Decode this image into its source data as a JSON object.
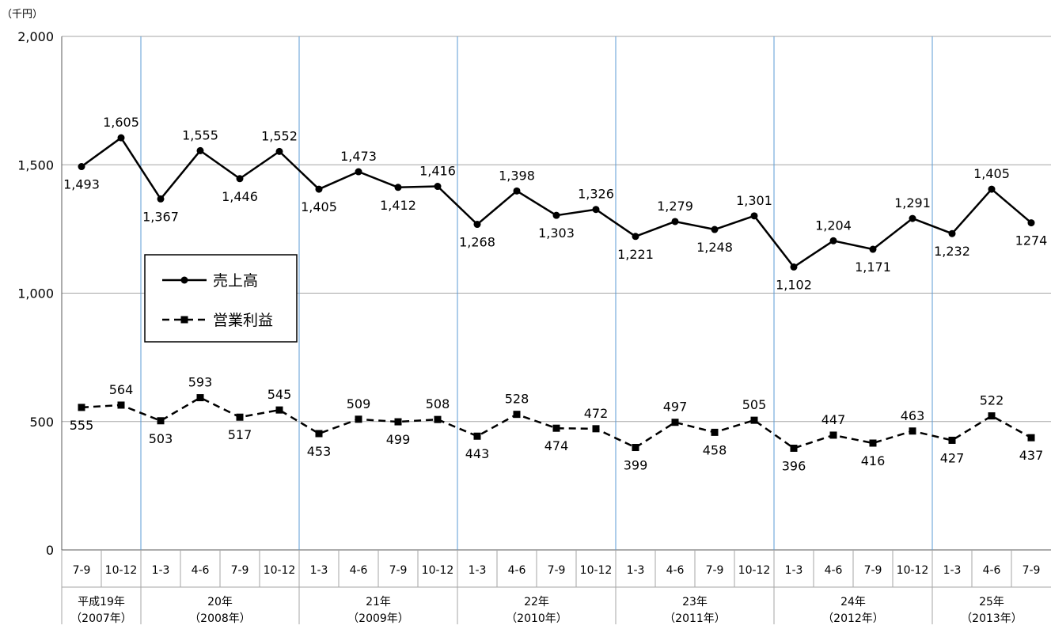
{
  "chart_data": {
    "type": "line",
    "unit_label": "（千円）",
    "y_ticks": [
      "0",
      "500",
      "1,000",
      "1,500",
      "2,000"
    ],
    "ylim": [
      0,
      2000
    ],
    "quarters": [
      "7-9",
      "10-12",
      "1-3",
      "4-6",
      "7-9",
      "10-12",
      "1-3",
      "4-6",
      "7-9",
      "10-12",
      "1-3",
      "4-6",
      "7-9",
      "10-12",
      "1-3",
      "4-6",
      "7-9",
      "10-12",
      "1-3",
      "4-6",
      "7-9",
      "10-12",
      "1-3",
      "4-6",
      "7-9"
    ],
    "year_groups": [
      {
        "label1": "平成19年",
        "label2": "（2007年）",
        "start": 0,
        "count": 2
      },
      {
        "label1": "20年",
        "label2": "（2008年）",
        "start": 2,
        "count": 4
      },
      {
        "label1": "21年",
        "label2": "（2009年）",
        "start": 6,
        "count": 4
      },
      {
        "label1": "22年",
        "label2": "（2010年）",
        "start": 10,
        "count": 4
      },
      {
        "label1": "23年",
        "label2": "（2011年）",
        "start": 14,
        "count": 4
      },
      {
        "label1": "24年",
        "label2": "（2012年）",
        "start": 18,
        "count": 4
      },
      {
        "label1": "25年",
        "label2": "（2013年）",
        "start": 22,
        "count": 3
      }
    ],
    "series": [
      {
        "name": "売上高",
        "style": "solid-circle",
        "values": [
          1493,
          1605,
          1367,
          1555,
          1446,
          1552,
          1405,
          1473,
          1412,
          1416,
          1268,
          1398,
          1303,
          1326,
          1221,
          1279,
          1248,
          1301,
          1102,
          1204,
          1171,
          1291,
          1232,
          1405,
          1274
        ],
        "labels": [
          "1,493",
          "1,605",
          "1,367",
          "1,555",
          "1,446",
          "1,552",
          "1,405",
          "1,473",
          "1,412",
          "1,416",
          "1,268",
          "1,398",
          "1,303",
          "1,326",
          "1,221",
          "1,279",
          "1,248",
          "1,301",
          "1,102",
          "1,204",
          "1,171",
          "1,291",
          "1,232",
          "1,405",
          "1274"
        ]
      },
      {
        "name": "営業利益",
        "style": "dashed-square",
        "values": [
          555,
          564,
          503,
          593,
          517,
          545,
          453,
          509,
          499,
          508,
          443,
          528,
          474,
          472,
          399,
          497,
          458,
          505,
          396,
          447,
          416,
          463,
          427,
          522,
          437
        ],
        "labels": [
          "555",
          "564",
          "503",
          "593",
          "517",
          "545",
          "453",
          "509",
          "499",
          "508",
          "443",
          "528",
          "474",
          "472",
          "399",
          "497",
          "458",
          "505",
          "396",
          "447",
          "416",
          "463",
          "427",
          "522",
          "437"
        ]
      }
    ],
    "legend": {
      "position": "left-middle"
    },
    "colors": {
      "line": "#000000",
      "grid": "#a6a6a6",
      "year_divider": "#5b9bd5"
    },
    "grid": true
  }
}
